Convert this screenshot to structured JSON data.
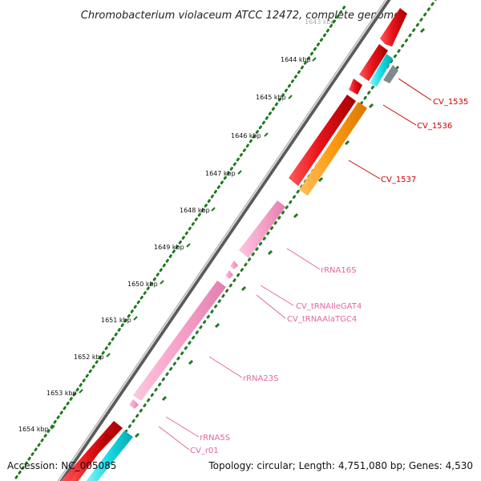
{
  "title": "Chromobacterium violaceum ATCC 12472, complete genome",
  "ticks": [
    {
      "label": "1643 kbp",
      "faded": true
    },
    {
      "label": "1644 kbp"
    },
    {
      "label": "1645 kbp"
    },
    {
      "label": "1646 kbp"
    },
    {
      "label": "1647 kbp"
    },
    {
      "label": "1648 kbp"
    },
    {
      "label": "1649 kbp"
    },
    {
      "label": "1650 kbp"
    },
    {
      "label": "1651 kbp"
    },
    {
      "label": "1652 kbp"
    },
    {
      "label": "1653 kbp"
    },
    {
      "label": "1654 kbp"
    }
  ],
  "features": [
    {
      "label": "CV_1535",
      "type": "CDS"
    },
    {
      "label": "CV_1536",
      "type": "CDS"
    },
    {
      "label": "CV_1537",
      "type": "CDS"
    },
    {
      "label": "rRNA16S",
      "type": "rRNA"
    },
    {
      "label": "CV_tRNAIleGAT4",
      "type": "tRNA"
    },
    {
      "label": "CV_tRNAAlaTGC4",
      "type": "tRNA"
    },
    {
      "label": "rRNA23S",
      "type": "rRNA"
    },
    {
      "label": "rRNA5S",
      "type": "rRNA"
    },
    {
      "label": "CV_r01",
      "type": "rRNA"
    }
  ],
  "colors": {
    "cds": "#e8141b",
    "rna": "#f7a1c8",
    "orange": "#ff9a10",
    "cyan": "#16d9e3",
    "grey": "#8a8a8a",
    "green": "#1f7a1f",
    "cds_label": "#cc0000",
    "rna_label": "#e2679f"
  },
  "footer": {
    "accession": "Accession: NC_005085",
    "summary": "Topology: circular; Length: 4,751,080 bp; Genes: 4,530"
  }
}
